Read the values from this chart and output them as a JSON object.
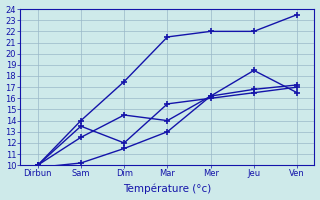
{
  "x_labels": [
    "Dirbun",
    "Sam",
    "Dim",
    "Mar",
    "Mer",
    "Jeu",
    "Ven"
  ],
  "x_positions": [
    0,
    1,
    2,
    3,
    4,
    5,
    6
  ],
  "series": [
    [
      10.0,
      14.0,
      17.5,
      21.5,
      22.0,
      22.0,
      23.5
    ],
    [
      10.0,
      13.5,
      12.0,
      15.5,
      16.0,
      16.5,
      17.0
    ],
    [
      10.0,
      12.5,
      14.5,
      14.0,
      16.2,
      18.5,
      16.5
    ],
    [
      9.8,
      10.2,
      11.5,
      13.0,
      16.2,
      16.8,
      17.2
    ]
  ],
  "line_color": "#1414aa",
  "marker": "+",
  "marker_size": 5,
  "linewidth": 1.0,
  "ylim": [
    10,
    24
  ],
  "yticks": [
    10,
    11,
    12,
    13,
    14,
    15,
    16,
    17,
    18,
    19,
    20,
    21,
    22,
    23,
    24
  ],
  "background_color": "#ceeaea",
  "grid_color": "#9ab8c8",
  "xlabel": "Température (°c)",
  "xlabel_fontsize": 7.5,
  "tick_fontsize": 6,
  "title": ""
}
